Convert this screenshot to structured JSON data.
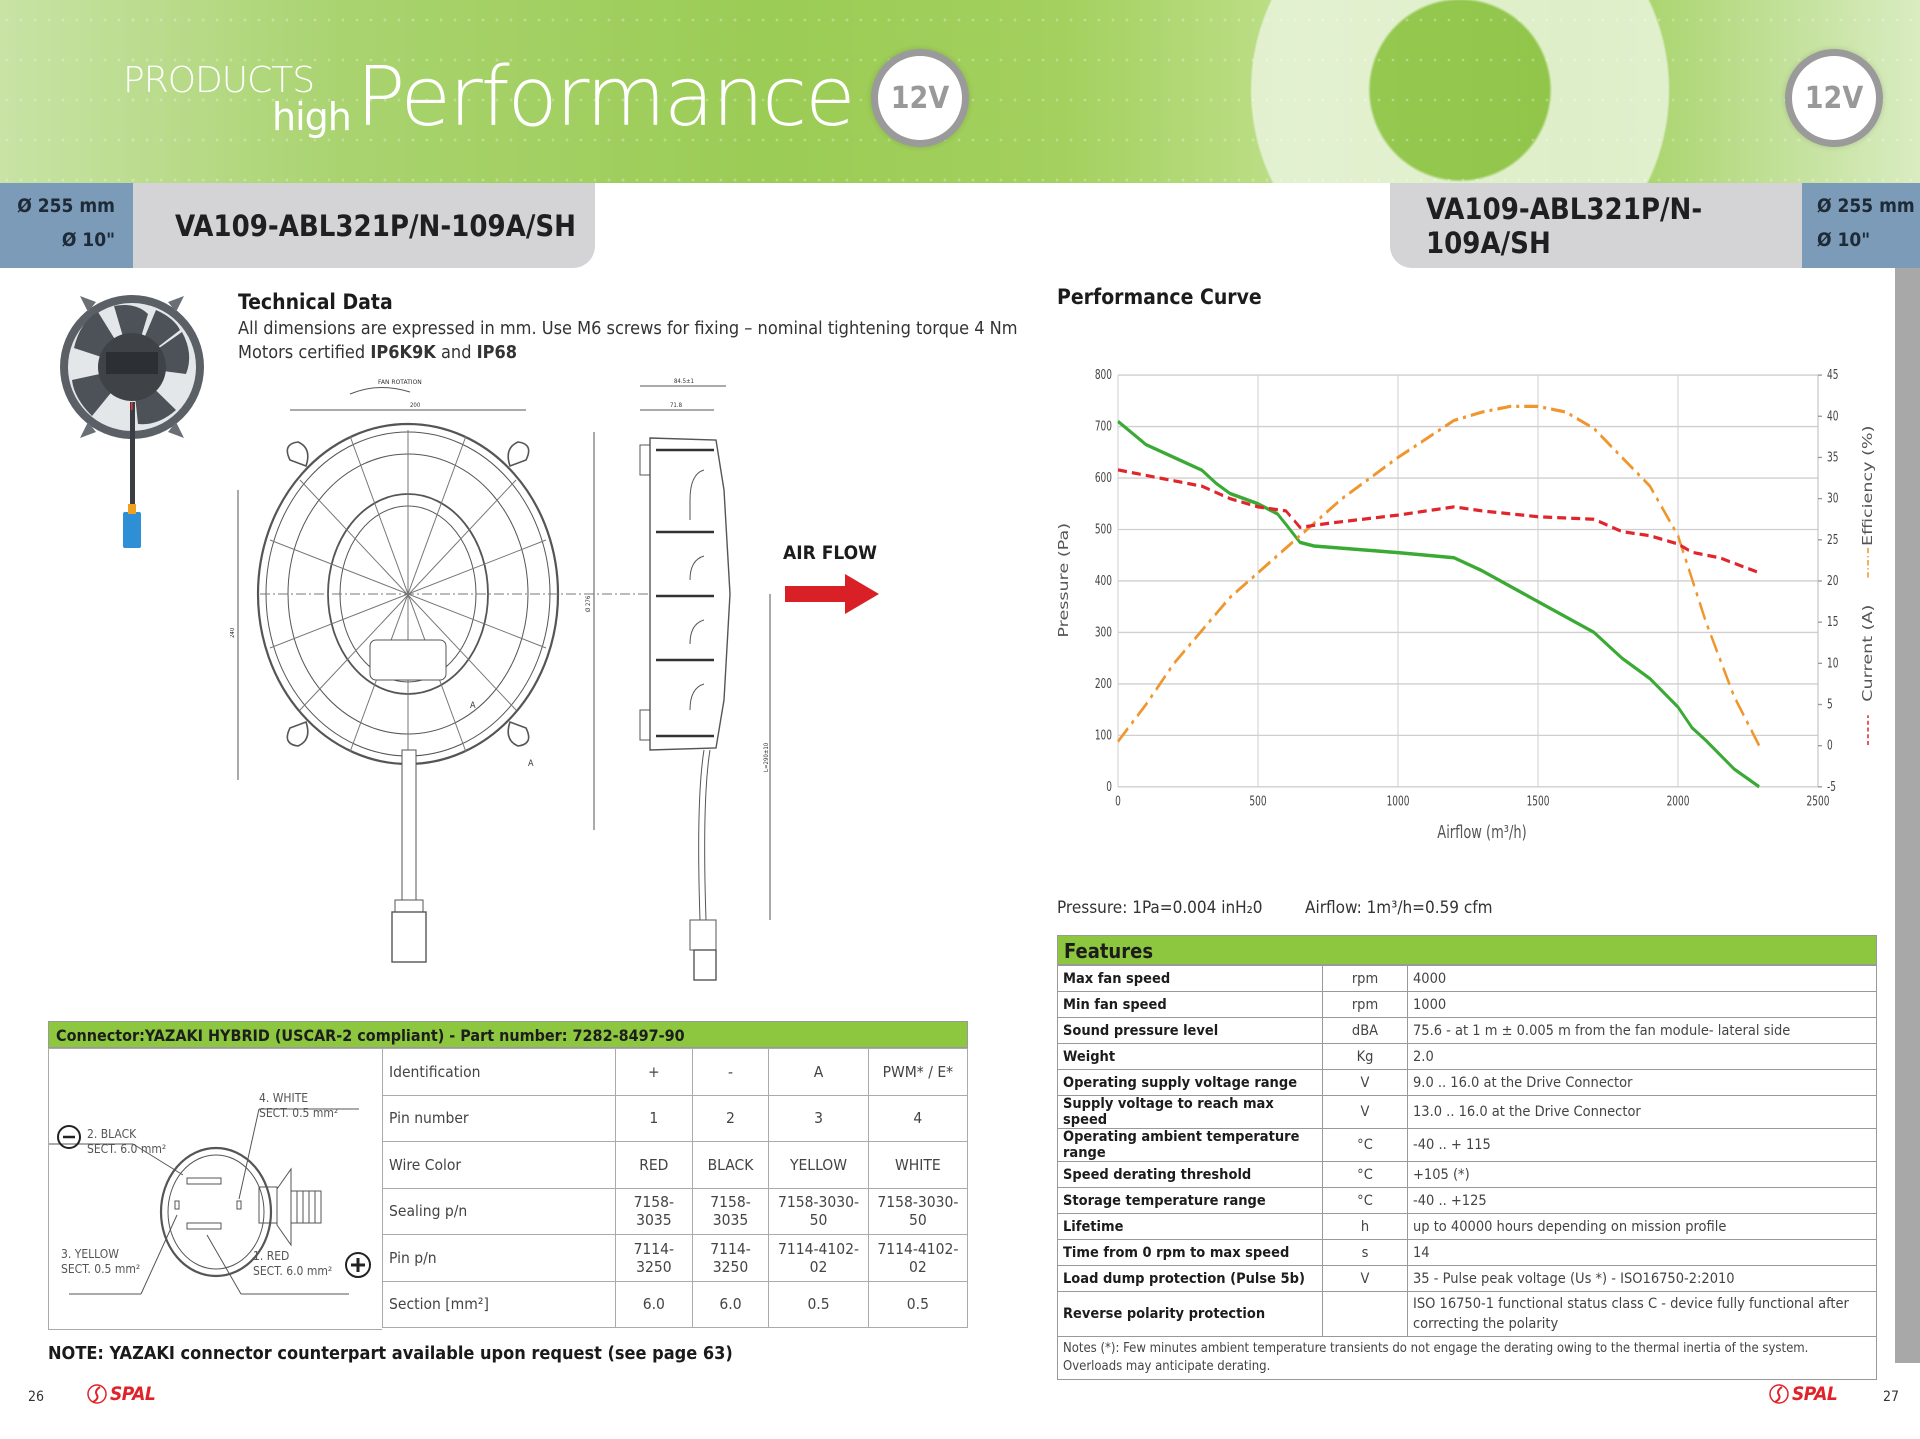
{
  "header": {
    "products": "PRODUCTS",
    "high": "high",
    "performance": "Performance",
    "voltage_badge_left": "12V",
    "voltage_badge_right": "12V"
  },
  "left_page": {
    "diameter_mm": "Ø 255 mm",
    "diameter_in": "Ø 10\"",
    "model": "VA109-ABL321P/N-109A/SH",
    "technical_data": {
      "title": "Technical Data",
      "line1": "All dimensions are expressed in mm. Use M6 screws for fixing – nominal tightening torque 4 Nm",
      "line2_prefix": "Motors certified ",
      "cert1": "IP6K9K",
      "line2_mid": " and ",
      "cert2": "IP68"
    },
    "drawing": {
      "fan_rotation": "FAN ROTATION",
      "dim_width": "200",
      "dim_depth_total": "84.5±1",
      "dim_depth": "71.8",
      "dim_height": "240",
      "dim_diameter": "Ø 276",
      "dim_cable": "L=290±10",
      "section_mark": "A",
      "air_flow": "AIR FLOW"
    },
    "connector": {
      "title": "Connector:YAZAKI HYBRID (USCAR-2 compliant) - Part number: 7282-8497-90",
      "diagram_labels": {
        "pin4": "4. WHITE",
        "pin4_sect": "SECT. 0.5 mm²",
        "pin2": "2. BLACK",
        "pin2_sect": "SECT. 6.0 mm²",
        "pin3": "3. YELLOW",
        "pin3_sect": "SECT. 0.5 mm²",
        "pin1": "1. RED",
        "pin1_sect": "SECT. 6.0 mm²",
        "minus": "−",
        "plus": "+"
      },
      "rows": [
        {
          "label": "Identification",
          "values": [
            "+",
            "-",
            "A",
            "PWM* / E*"
          ]
        },
        {
          "label": "Pin number",
          "values": [
            "1",
            "2",
            "3",
            "4"
          ]
        },
        {
          "label": "Wire Color",
          "values": [
            "RED",
            "BLACK",
            "YELLOW",
            "WHITE"
          ]
        },
        {
          "label": "Sealing p/n",
          "values": [
            "7158-3035",
            "7158-3035",
            "7158-3030-50",
            "7158-3030-50"
          ]
        },
        {
          "label": "Pin p/n",
          "values": [
            "7114-3250",
            "7114-3250",
            "7114-4102-02",
            "7114-4102-02"
          ]
        },
        {
          "label": "Section [mm²]",
          "values": [
            "6.0",
            "6.0",
            "0.5",
            "0.5"
          ]
        }
      ]
    },
    "note": "NOTE: YAZAKI connector counterpart available upon request (see page 63)",
    "page_number": "26",
    "logo": "SPAL"
  },
  "right_page": {
    "diameter_mm": "Ø 255 mm",
    "diameter_in": "Ø 10\"",
    "model": "VA109-ABL321P/N-109A/SH",
    "performance_title": "Performance Curve",
    "conversion_pressure": "Pressure: 1Pa=0.004 inH₂0",
    "conversion_airflow": "Airflow: 1m³/h=0.59 cfm",
    "features": {
      "title": "Features",
      "rows": [
        {
          "label": "Max fan speed",
          "unit": "rpm",
          "value": "4000"
        },
        {
          "label": "Min fan speed",
          "unit": "rpm",
          "value": "1000"
        },
        {
          "label": "Sound pressure level",
          "unit": "dBA",
          "value": "75.6 - at 1 m ± 0.005 m from the fan module- lateral side"
        },
        {
          "label": "Weight",
          "unit": "Kg",
          "value": "2.0"
        },
        {
          "label": "Operating supply voltage range",
          "unit": "V",
          "value": "9.0 .. 16.0 at the Drive Connector"
        },
        {
          "label": "Supply voltage to reach max speed",
          "unit": "V",
          "value": "13.0 .. 16.0 at the Drive Connector"
        },
        {
          "label": "Operating ambient temperature range",
          "unit": "°C",
          "value": "-40 .. + 115"
        },
        {
          "label": "Speed derating threshold",
          "unit": "°C",
          "value": "+105 (*)"
        },
        {
          "label": "Storage temperature range",
          "unit": "°C",
          "value": "-40 .. +125"
        },
        {
          "label": "Lifetime",
          "unit": "h",
          "value": "up to 40000 hours depending on mission profile"
        },
        {
          "label": "Time from 0 rpm to max speed",
          "unit": "s",
          "value": "14"
        },
        {
          "label": "Load dump protection (Pulse 5b)",
          "unit": "V",
          "value": "35 - Pulse peak voltage (Us *) - ISO16750-2:2010"
        },
        {
          "label": "Reverse polarity protection",
          "unit": "",
          "value": "ISO 16750-1 functional status class C - device fully functional after correcting the polarity"
        }
      ],
      "notes": "Notes (*): Few minutes ambient temperature transients do not engage the derating owing to the thermal inertia of the system. Overloads may anticipate derating."
    },
    "page_number": "27",
    "logo": "SPAL"
  },
  "colors": {
    "accent_green": "#8dc63f",
    "diameter_blue": "#7b9bb8",
    "model_gray": "#d4d4d6",
    "pressure_curve": "#3aaa35",
    "efficiency_curve": "#f0962e",
    "current_curve": "#e0262c",
    "airflow_arrow": "#d92027",
    "logo_red": "#e02328"
  },
  "chart_data": {
    "type": "line",
    "title": "Performance Curve",
    "xlabel": "Airflow (m³/h)",
    "ylabel": "Pressure (Pa)",
    "y2label": [
      "Efficiency (%)",
      "Current (A)"
    ],
    "xlim": [
      0,
      2500
    ],
    "ylim": [
      0,
      800
    ],
    "y2lim": [
      -5,
      45
    ],
    "x_ticks": [
      0,
      500,
      1000,
      1500,
      2000,
      2500
    ],
    "y_ticks": [
      0,
      100,
      200,
      300,
      400,
      500,
      600,
      700,
      800
    ],
    "y2_ticks": [
      -5,
      0,
      5,
      10,
      15,
      20,
      25,
      30,
      35,
      40,
      45
    ],
    "grid": true,
    "legend_position": "right axis label",
    "series": [
      {
        "name": "Pressure (Pa)",
        "axis": "left",
        "style": "solid",
        "color": "#3aaa35",
        "x": [
          0,
          100,
          200,
          300,
          350,
          400,
          500,
          570,
          600,
          650,
          700,
          1000,
          1200,
          1300,
          1500,
          1700,
          1800,
          1900,
          2000,
          2050,
          2100,
          2200,
          2290
        ],
        "values": [
          710,
          665,
          640,
          615,
          590,
          570,
          550,
          530,
          510,
          475,
          468,
          455,
          445,
          420,
          360,
          300,
          250,
          210,
          155,
          115,
          90,
          35,
          0
        ]
      },
      {
        "name": "Efficiency (%)",
        "axis": "right",
        "style": "dash-dot",
        "color": "#f0962e",
        "x": [
          0,
          100,
          200,
          300,
          400,
          500,
          600,
          700,
          800,
          1000,
          1200,
          1300,
          1400,
          1500,
          1600,
          1700,
          1800,
          1900,
          2000,
          2100,
          2200,
          2290
        ],
        "values": [
          0.5,
          5,
          10,
          14,
          18,
          21,
          24,
          27,
          30,
          35,
          39.5,
          40.5,
          41.2,
          41.2,
          40.5,
          38.5,
          35,
          31.5,
          25.5,
          15,
          6,
          0
        ]
      },
      {
        "name": "Current (A)",
        "axis": "right",
        "style": "dashed",
        "color": "#e0262c",
        "x": [
          0,
          150,
          300,
          400,
          500,
          600,
          650,
          750,
          1000,
          1200,
          1300,
          1500,
          1700,
          1800,
          1900,
          2000,
          2050,
          2150,
          2290
        ],
        "values": [
          33.5,
          32.5,
          31.5,
          30,
          29,
          28.5,
          26.5,
          27,
          28,
          29,
          28.5,
          27.8,
          27.5,
          26,
          25.5,
          24.5,
          23.5,
          22.8,
          21
        ]
      }
    ]
  }
}
